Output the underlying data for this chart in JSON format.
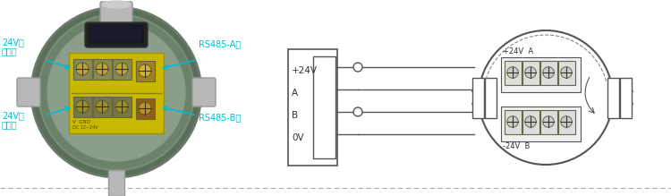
{
  "bg_color": "#ffffff",
  "line_color": "#555555",
  "dark_color": "#333333",
  "gray_color": "#888888",
  "cyan_color": "#00bcd4",
  "label_color": "#00bcd4",
  "green_dark": "#4a6b4a",
  "green_mid": "#5a7a5a",
  "green_light": "#7a9a7a",
  "gray_conn": "#b0b0b0",
  "gray_dark": "#888888",
  "yellow_term": "#c8b800",
  "yellow_term2": "#d4c420",
  "screw_gold": "#b09000",
  "screw_dark": "#7a6800",
  "inner_bg": "#8a9a8a",
  "win_dark": "#1a1a22",
  "stem_gray": "#aaaaaa",
  "power_labels": [
    "+24V",
    "A",
    "B",
    "0V"
  ],
  "left_labels_1": [
    "24V电",
    "源正极"
  ],
  "left_labels_2": [
    "24V电",
    "源负极"
  ],
  "right_label_A": "RS485-A极",
  "right_label_B": "RS485-B极",
  "sensor_top_label": "+24V  A",
  "sensor_bot_label": "-24V  B",
  "dashed_color": "#aaaaaa"
}
